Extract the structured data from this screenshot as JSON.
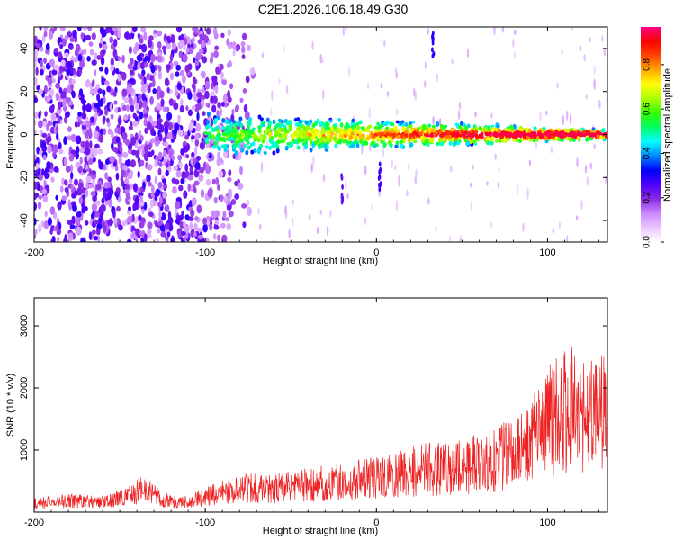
{
  "title": "C2E1.2026.106.18.49.G30",
  "chart_data": [
    {
      "type": "heatmap",
      "xlabel": "Height of straight line (km)",
      "ylabel": "Frequency (Hz)",
      "xlim": [
        -200,
        135
      ],
      "ylim": [
        -50,
        50
      ],
      "xticks": [
        -200,
        -100,
        0,
        100
      ],
      "yticks": [
        -40,
        -20,
        0,
        20,
        40
      ],
      "colorbar": {
        "label": "Normalized spectral amplitude",
        "range": [
          0,
          0.97
        ],
        "ticks": [
          0.0,
          0.2,
          0.4,
          0.6,
          0.8
        ],
        "tick_labels": [
          "0.0",
          "0.2",
          "0.4",
          "0.6",
          "0.8"
        ],
        "colors": [
          "#ffffff",
          "#e9c7ff",
          "#cc88ff",
          "#8a2be2",
          "#4f00ff",
          "#0000ff",
          "#0088ff",
          "#00ffff",
          "#00ff66",
          "#33ff00",
          "#aaff00",
          "#ffff00",
          "#ffaa00",
          "#ff4400",
          "#ff0000",
          "#ff0088"
        ]
      },
      "signal_center_hz": 0,
      "signal_start_km": -100,
      "noise_band_km": [
        -200,
        -70
      ]
    },
    {
      "type": "line",
      "xlabel": "Height of straight line (km)",
      "ylabel": "SNR (10 * v/v)",
      "xlim": [
        -200,
        135
      ],
      "ylim": [
        0,
        3450
      ],
      "xticks": [
        -200,
        -100,
        0,
        100
      ],
      "yticks": [
        1000,
        2000,
        3000
      ],
      "color": "#ee2222",
      "series": [
        {
          "x": [
            -200,
            -180,
            -160,
            -145,
            -138,
            -133,
            -125,
            -110,
            -100,
            -90,
            -80,
            -70,
            -60,
            -50,
            -40,
            -30,
            -20,
            -10,
            0,
            10,
            20,
            30,
            40,
            50,
            60,
            70,
            80,
            90,
            100,
            105,
            110,
            115,
            120,
            125,
            130,
            135
          ],
          "y": [
            150,
            190,
            180,
            260,
            380,
            350,
            200,
            170,
            260,
            330,
            380,
            420,
            400,
            430,
            460,
            490,
            520,
            560,
            600,
            610,
            680,
            720,
            780,
            760,
            820,
            880,
            1000,
            1300,
            1500,
            1650,
            1700,
            1750,
            1650,
            1650,
            1650,
            1650
          ]
        }
      ]
    }
  ]
}
